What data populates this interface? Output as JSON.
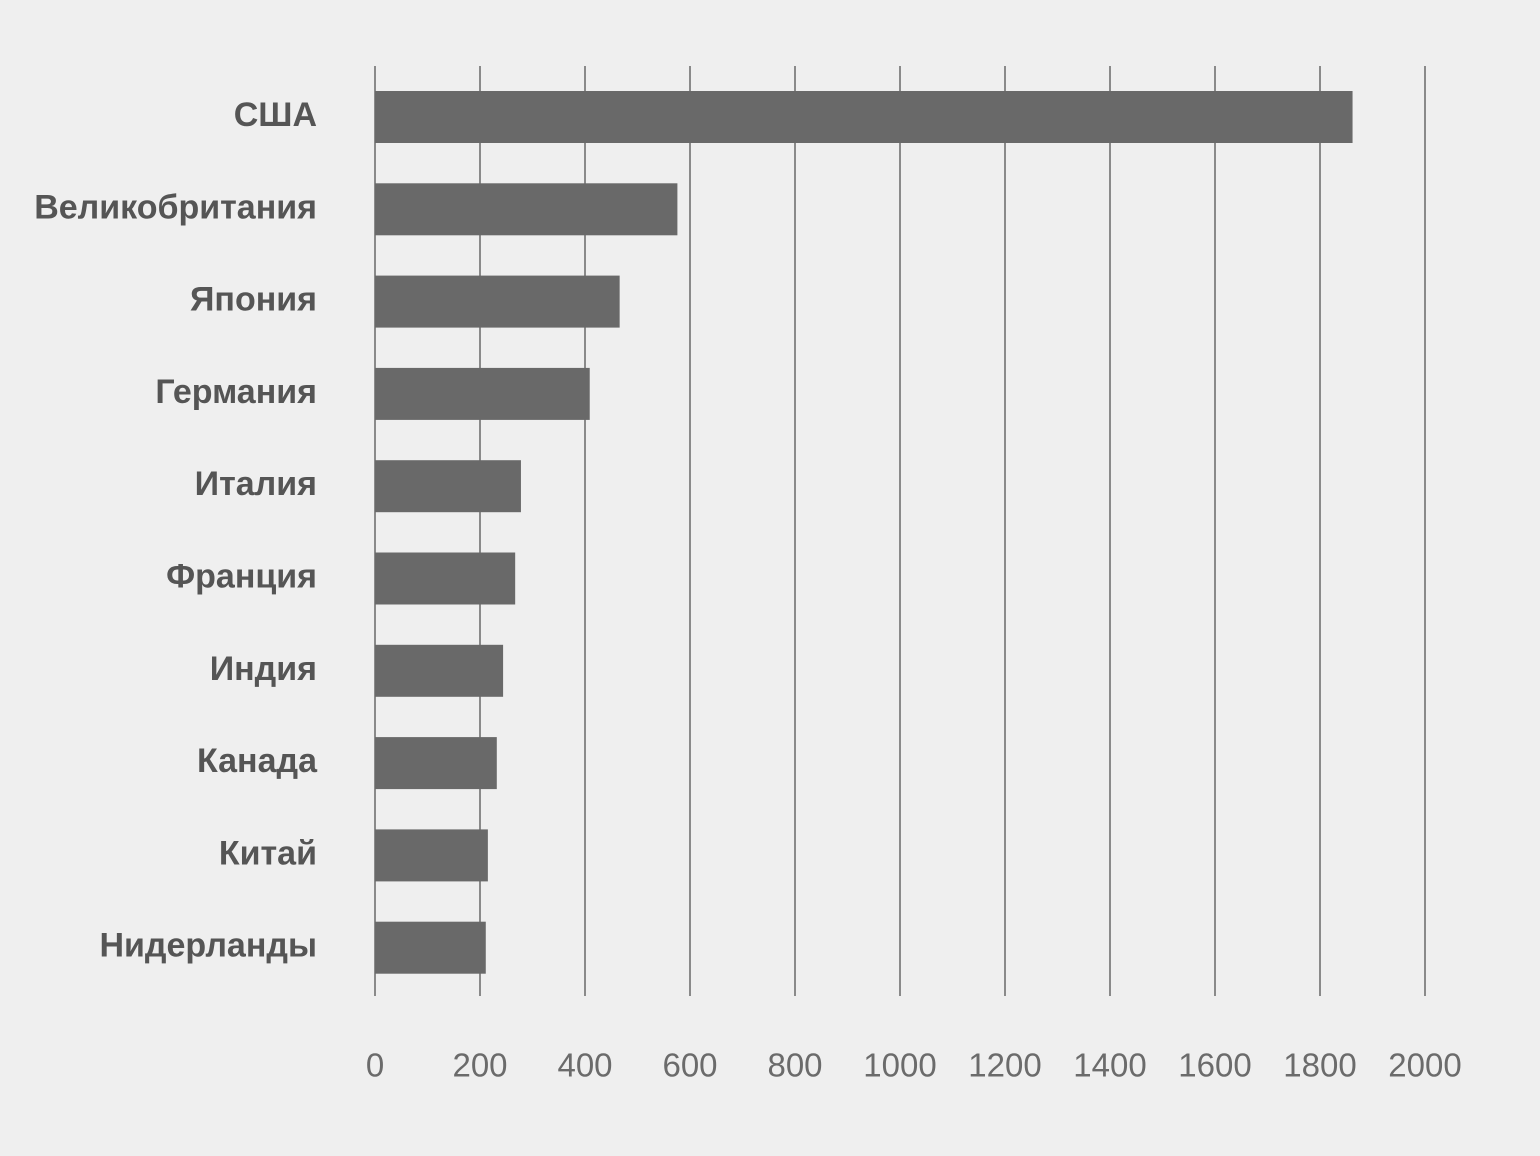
{
  "chart_data": {
    "type": "bar",
    "orientation": "horizontal",
    "title": "",
    "xlabel": "",
    "ylabel": "",
    "categories": [
      "США",
      "Великобритания",
      "Япония",
      "Германия",
      "Италия",
      "Франция",
      "Индия",
      "Канада",
      "Китай",
      "Нидерланды"
    ],
    "values": [
      1862,
      576,
      466,
      409,
      278,
      267,
      244,
      232,
      215,
      211
    ],
    "xlim": [
      0,
      2000
    ],
    "x_ticks": [
      "0",
      "200",
      "400",
      "600",
      "800",
      "1000",
      "1200",
      "1400",
      "1600",
      "1800",
      "2000"
    ],
    "grid": "vertical",
    "legend": "none",
    "colors": {
      "background": "#efefef",
      "bar": "#696969",
      "grid": "#8a8a8a",
      "category_text": "#555555",
      "tick_text": "#6b6b6b"
    }
  }
}
